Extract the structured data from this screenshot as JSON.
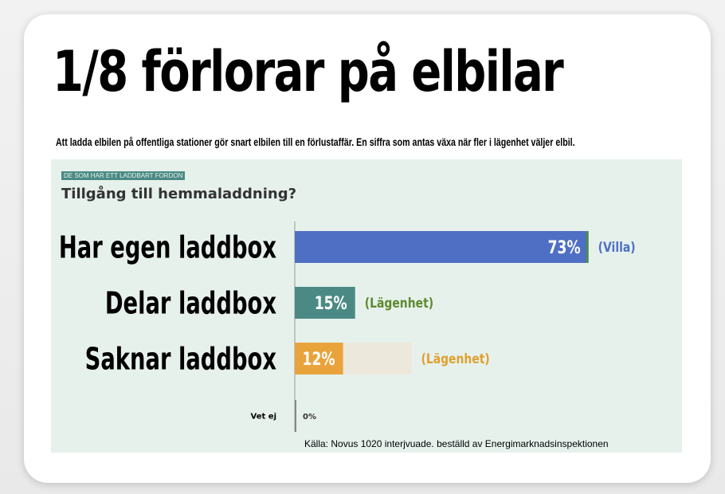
{
  "headline": "1/8 förlorar på elbilar",
  "subtitle": "Att ladda elbilen på offentliga stationer gör snart elbilen till en förlustaffär. En siffra som antas växa när fler i lägenhet väljer elbil.",
  "chart_tag": "DE SOM HAR ETT LADDBART FORDON",
  "chart_data": {
    "type": "bar",
    "orientation": "horizontal",
    "title": "Tillgång till hemmaladdning?",
    "categories": [
      "Har egen laddbox",
      "Delar laddbox",
      "Saknar laddbox",
      "Vet ej"
    ],
    "values": [
      73,
      15,
      12,
      0
    ],
    "value_labels": [
      "73%",
      "15%",
      "12%",
      "0%"
    ],
    "annotations": [
      "(Villa)",
      "(Lägenhet)",
      "(Lägenhet)",
      ""
    ],
    "bar_colors": [
      "#4f6fc4",
      "#4b8a84",
      "#e9a33b",
      "#888888"
    ],
    "annotation_colors": [
      "#4f6fc4",
      "#5f8a2e",
      "#e0a030",
      "#000000"
    ],
    "background_bar": {
      "category": "Saknar laddbox",
      "value": 29,
      "color": "#ece9dc"
    },
    "xlim": [
      0,
      100
    ],
    "grid": false
  },
  "source": "Källa: Novus 1020 interjvuade.  beställd av Energimarknadsinspektionen"
}
